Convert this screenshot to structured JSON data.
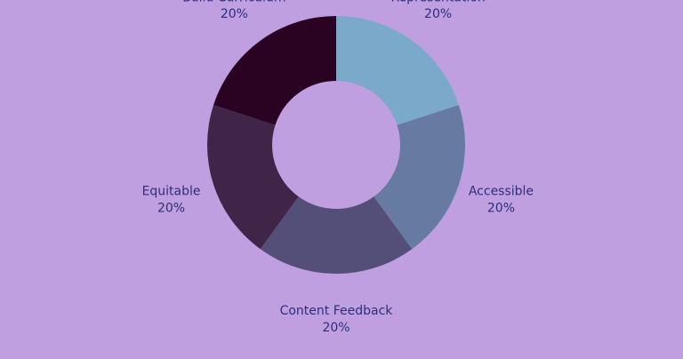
{
  "page": {
    "background": "#bf9fe0"
  },
  "chart_data": {
    "type": "pie",
    "style": "donut",
    "categories": [
      "Representation",
      "Accessible",
      "Content Feedback",
      "Equitable",
      "Build Curriculum"
    ],
    "values": [
      20,
      20,
      20,
      20,
      20
    ],
    "value_labels": [
      "20%",
      "20%",
      "20%",
      "20%",
      "20%"
    ],
    "colors": [
      "#7aa9c9",
      "#677aa2",
      "#544f78",
      "#402549",
      "#2b0322"
    ],
    "label_color": "#2c2f7a",
    "start_angle_deg": 0,
    "direction": "clockwise",
    "legend": "none"
  }
}
